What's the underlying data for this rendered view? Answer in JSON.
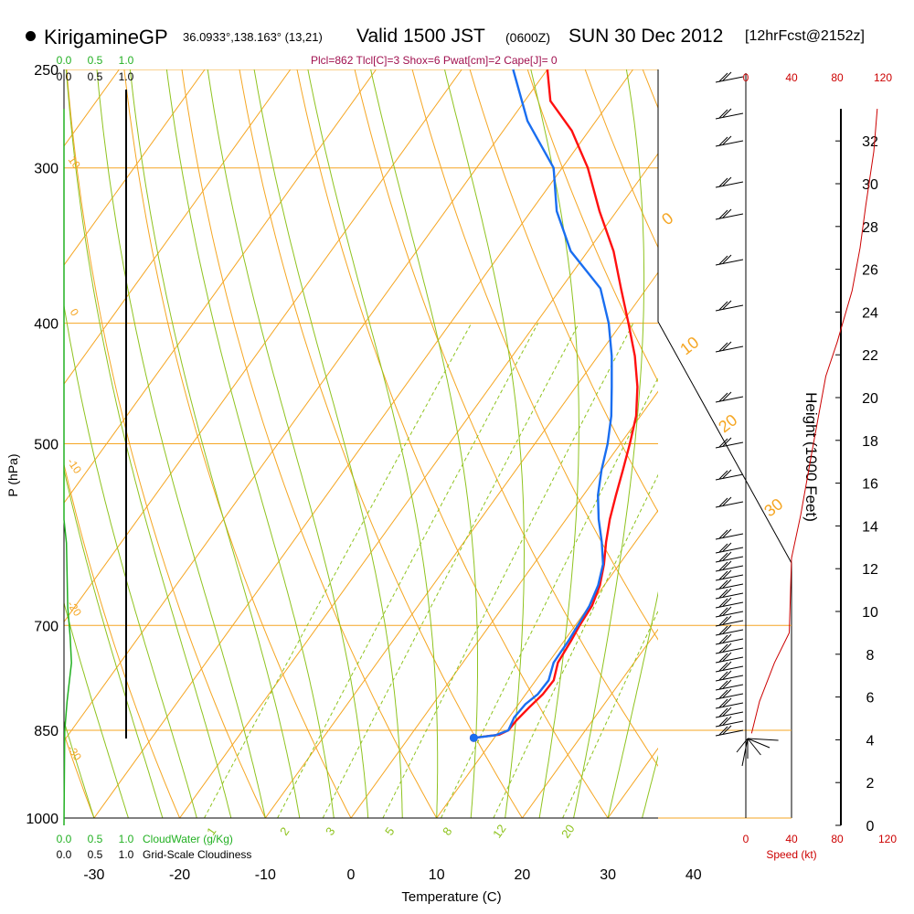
{
  "header": {
    "station": "KirigamineGP",
    "coords": "36.0933°,138.163° (13,21)",
    "valid": "Valid 1500 JST",
    "utc": "(0600Z)",
    "date": "SUN 30 Dec 2012",
    "forecast": "[12hrFcst@2152z]"
  },
  "indices": "Plcl=862 Tlcl[C]=3 Shox=6 Pwat[cm]=2 Cape[J]= 0",
  "colors": {
    "isobar": "#f5a623",
    "isotherm": "#f5a623",
    "dry_adiabat": "#f5a623",
    "moist_adiabat": "#8fc31f",
    "mixing_ratio": "#8fc31f",
    "temperature": "#ff1010",
    "dewpoint": "#1a6ef0",
    "cloud_water": "#22b022",
    "cloudiness": "#000000",
    "wind_speed": "#cc0000",
    "index_text": "#a0104f"
  },
  "chart_data": {
    "type": "line",
    "title": "KirigamineGP",
    "xlabel": "Temperature (C)",
    "ylabel": "P (hPa)",
    "xlim": [
      -35,
      45
    ],
    "ylim": [
      1000,
      250
    ],
    "x_ticks": [
      -30,
      -20,
      -10,
      0,
      10,
      20,
      30,
      40
    ],
    "pressure_levels": [
      250,
      300,
      400,
      500,
      700,
      850,
      1000
    ],
    "isotherm_labels": [
      "-10",
      "0",
      "10",
      "20",
      "30"
    ],
    "dry_adiabat_labels": [
      "10",
      "0",
      "-10",
      "-20",
      "-30"
    ],
    "mixing_ratio_labels": [
      "1",
      "2",
      "3",
      "5",
      "8",
      "12",
      "20"
    ],
    "series": [
      {
        "name": "Temperature",
        "points": [
          [
            7.6,
            862
          ],
          [
            9.2,
            859
          ],
          [
            10.3,
            857
          ],
          [
            11.0,
            850
          ],
          [
            11.1,
            835
          ],
          [
            11.5,
            815
          ],
          [
            12.0,
            795
          ],
          [
            12.1,
            775
          ],
          [
            11.1,
            750
          ],
          [
            10.8,
            720
          ],
          [
            10.5,
            700
          ],
          [
            10.3,
            675
          ],
          [
            9.5,
            650
          ],
          [
            8.2,
            625
          ],
          [
            6.6,
            600
          ],
          [
            5.1,
            575
          ],
          [
            3.8,
            550
          ],
          [
            2.5,
            525
          ],
          [
            1.1,
            500
          ],
          [
            -0.5,
            475
          ],
          [
            -2.8,
            450
          ],
          [
            -5.7,
            425
          ],
          [
            -9.2,
            400
          ],
          [
            -13.0,
            375
          ],
          [
            -17.0,
            350
          ],
          [
            -22.0,
            325
          ],
          [
            -27.0,
            300
          ],
          [
            -32.0,
            280
          ],
          [
            -37.0,
            265
          ],
          [
            -40.0,
            250
          ]
        ]
      },
      {
        "name": "Dewpoint",
        "points": [
          [
            7.6,
            862
          ],
          [
            8.2,
            861
          ],
          [
            9.9,
            858
          ],
          [
            11.0,
            850
          ],
          [
            10.6,
            830
          ],
          [
            10.8,
            810
          ],
          [
            11.4,
            795
          ],
          [
            11.5,
            775
          ],
          [
            10.6,
            750
          ],
          [
            10.5,
            720
          ],
          [
            10.3,
            700
          ],
          [
            10.0,
            675
          ],
          [
            9.3,
            650
          ],
          [
            8.1,
            625
          ],
          [
            6.1,
            600
          ],
          [
            3.8,
            575
          ],
          [
            1.7,
            550
          ],
          [
            0.0,
            525
          ],
          [
            -1.5,
            500
          ],
          [
            -3.4,
            475
          ],
          [
            -5.8,
            450
          ],
          [
            -8.4,
            425
          ],
          [
            -11.5,
            400
          ],
          [
            -15.4,
            375
          ],
          [
            -22.0,
            350
          ],
          [
            -27.0,
            325
          ],
          [
            -31.0,
            300
          ],
          [
            -38.0,
            275
          ],
          [
            -44.0,
            250
          ]
        ]
      }
    ],
    "height_axis": {
      "label": "Height (1000 Feet)",
      "ticks": [
        "0",
        "2",
        "4",
        "6",
        "8",
        "10",
        "12",
        "14",
        "16",
        "18",
        "20",
        "22",
        "24",
        "26",
        "28",
        "30",
        "32"
      ]
    },
    "cloud_water_axis": {
      "label": "CloudWater (g/Kg)",
      "ticks": [
        "0.0",
        "0.5",
        "1.0"
      ],
      "profile_ft": [
        [
          0,
          0
        ],
        [
          0.012,
          4.4
        ],
        [
          0.05,
          5.8
        ],
        [
          0.12,
          7.6
        ],
        [
          0.1,
          8.8
        ],
        [
          0.06,
          10.2
        ],
        [
          0.04,
          13.2
        ],
        [
          0,
          14.3
        ],
        [
          0,
          33.5
        ]
      ]
    },
    "cloudiness_axis": {
      "label": "Grid-Scale Cloudiness",
      "ticks": [
        "0.0",
        "0.5",
        "1.0"
      ]
    },
    "wind_speed_axis": {
      "label": "Speed (kt)",
      "ticks": [
        "0",
        "40",
        "80",
        "120"
      ],
      "profile_ft": [
        [
          5,
          4.3
        ],
        [
          12,
          5.8
        ],
        [
          25,
          7.6
        ],
        [
          38,
          9.0
        ],
        [
          40,
          12.5
        ],
        [
          48,
          14.5
        ],
        [
          58,
          17.5
        ],
        [
          70,
          21.0
        ],
        [
          80,
          22.6
        ],
        [
          93,
          25.0
        ],
        [
          100,
          27.0
        ],
        [
          105,
          29.0
        ],
        [
          112,
          31.5
        ],
        [
          115,
          33.5
        ]
      ]
    }
  }
}
